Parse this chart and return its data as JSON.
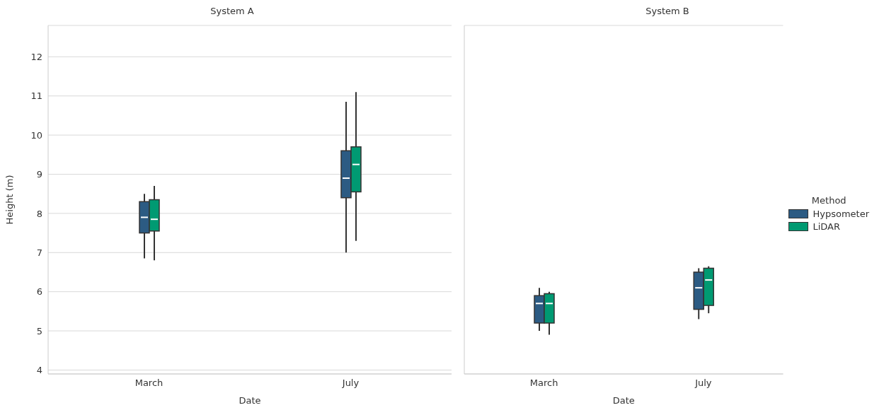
{
  "chart_data": [
    {
      "type": "box",
      "title": "System A",
      "xlabel": "Date",
      "ylabel": "Height (m)",
      "categories": [
        "March",
        "July"
      ],
      "ylim": [
        3.9,
        12.8
      ],
      "yticks": [
        4,
        5,
        6,
        7,
        8,
        9,
        10,
        11,
        12
      ],
      "grid": "y",
      "series": [
        {
          "color": "#2c5b83",
          "boxes": [
            {
              "low": 6.85,
              "q1": 7.5,
              "median": 7.9,
              "q3": 8.3,
              "high": 8.5
            },
            {
              "low": 7.0,
              "q1": 8.4,
              "median": 8.9,
              "q3": 9.6,
              "high": 10.85
            }
          ]
        },
        {
          "color": "#009a72",
          "boxes": [
            {
              "low": 6.8,
              "q1": 7.55,
              "median": 7.85,
              "q3": 8.35,
              "high": 8.7
            },
            {
              "low": 7.3,
              "q1": 8.55,
              "median": 9.25,
              "q3": 9.7,
              "high": 11.1
            }
          ]
        }
      ]
    },
    {
      "type": "box",
      "title": "System B",
      "xlabel": "Date",
      "categories": [
        "March",
        "July"
      ],
      "ylim": [
        3.9,
        12.8
      ],
      "yticks": [
        4,
        5,
        6,
        7,
        8,
        9,
        10,
        11,
        12
      ],
      "grid": "y",
      "tick_labels": "x",
      "legend": "right",
      "legend_title": "Method",
      "series": [
        {
          "name": "Hypsometer",
          "color": "#2c5b83",
          "boxes": [
            {
              "low": 5.0,
              "q1": 5.2,
              "median": 5.7,
              "q3": 5.9,
              "high": 6.1
            },
            {
              "low": 5.3,
              "q1": 5.55,
              "median": 6.1,
              "q3": 6.5,
              "high": 6.6
            }
          ]
        },
        {
          "name": "LiDAR",
          "color": "#009a72",
          "boxes": [
            {
              "low": 4.9,
              "q1": 5.2,
              "median": 5.7,
              "q3": 5.95,
              "high": 6.0
            },
            {
              "low": 5.45,
              "q1": 5.65,
              "median": 6.3,
              "q3": 6.6,
              "high": 6.65
            }
          ]
        }
      ]
    }
  ]
}
